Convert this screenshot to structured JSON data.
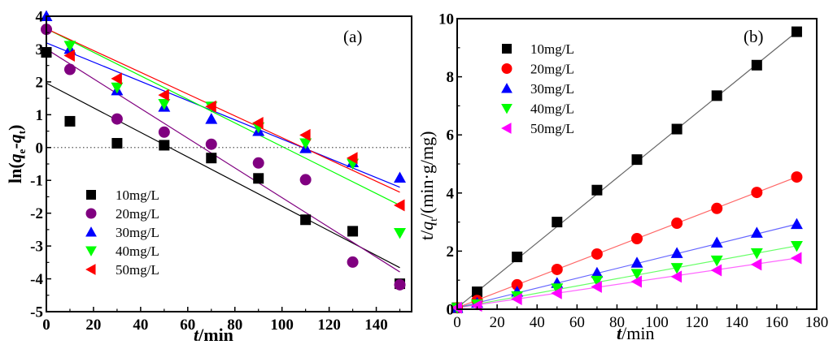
{
  "chart_data": [
    {
      "type": "scatter",
      "panel_label": "(a)",
      "title": "",
      "xlabel": "t/min",
      "xlabel_parts": {
        "italic": "t",
        "rest": "/min"
      },
      "ylabel": "ln(q_e-q_t)",
      "ylabel_parts": {
        "pre": "ln(",
        "q1": "q",
        "sub1": "e",
        "mid": "-",
        "q2": "q",
        "sub2": "t",
        "post": ")"
      },
      "xlim": [
        0,
        155
      ],
      "ylim": [
        -5,
        4
      ],
      "xticks": [
        0,
        20,
        40,
        60,
        80,
        100,
        120,
        140
      ],
      "yticks": [
        -5,
        -4,
        -3,
        -2,
        -1,
        0,
        1,
        2,
        3,
        4
      ],
      "grid": false,
      "reference_line": {
        "y": 0,
        "style": "dotted"
      },
      "legend_position": "bottom-left",
      "x": [
        0,
        10,
        30,
        50,
        70,
        90,
        110,
        130,
        150
      ],
      "series": [
        {
          "name": "10mg/L",
          "marker": "square",
          "color": "#000000",
          "values": [
            2.9,
            0.8,
            0.13,
            0.07,
            -0.32,
            -0.94,
            -2.2,
            -2.55,
            -4.15
          ],
          "fit": [
            1.96,
            -3.66
          ]
        },
        {
          "name": "20mg/L",
          "marker": "circle",
          "color": "#800080",
          "values": [
            3.6,
            2.38,
            0.87,
            0.47,
            0.1,
            -0.47,
            -0.98,
            -3.49,
            -4.18
          ],
          "fit": [
            3.0,
            -3.79
          ]
        },
        {
          "name": "30mg/L",
          "marker": "triangle-up",
          "color": "#0000ff",
          "values": [
            4.0,
            3.0,
            1.74,
            1.24,
            0.87,
            0.5,
            -0.02,
            -0.45,
            -0.92
          ],
          "fit": [
            3.19,
            -1.21
          ]
        },
        {
          "name": "40mg/L",
          "marker": "triangle-down",
          "color": "#00ff00",
          "values": [
            null,
            3.1,
            1.83,
            1.33,
            1.25,
            0.62,
            0.13,
            -0.49,
            -2.6
          ],
          "fit": [
            3.62,
            -1.76
          ]
        },
        {
          "name": "50mg/L",
          "marker": "triangle-left",
          "color": "#ff0000",
          "values": [
            null,
            2.8,
            2.1,
            1.6,
            1.25,
            0.75,
            0.38,
            -0.32,
            -1.76
          ],
          "fit": [
            3.62,
            -1.36
          ]
        }
      ]
    },
    {
      "type": "scatter",
      "panel_label": "(b)",
      "title": "",
      "xlabel": "t/min",
      "xlabel_parts": {
        "italic": "t",
        "rest": "/min"
      },
      "ylabel": "t/q_t/(min·g/mg)",
      "ylabel_parts": {
        "pre": "t/",
        "q": "q",
        "sub": "t",
        "post": "/(min·g/mg)"
      },
      "xlim": [
        0,
        180
      ],
      "ylim": [
        0,
        10
      ],
      "xticks": [
        0,
        20,
        40,
        60,
        80,
        100,
        120,
        140,
        160,
        180
      ],
      "yticks": [
        0,
        2,
        4,
        6,
        8,
        10
      ],
      "grid": false,
      "legend_position": "top-left",
      "x": [
        0,
        10,
        30,
        50,
        70,
        90,
        110,
        130,
        150,
        170
      ],
      "series": [
        {
          "name": "10mg/L",
          "marker": "square",
          "color": "#000000",
          "values": [
            0.05,
            0.6,
            1.8,
            3.0,
            4.1,
            5.15,
            6.2,
            7.35,
            8.4,
            9.55
          ],
          "fit": [
            0.05,
            9.55
          ]
        },
        {
          "name": "20mg/L",
          "marker": "circle",
          "color": "#ff0000",
          "values": [
            0.05,
            0.3,
            0.84,
            1.37,
            1.9,
            2.43,
            2.96,
            3.47,
            4.02,
            4.55
          ],
          "fit": [
            0.05,
            4.55
          ]
        },
        {
          "name": "30mg/L",
          "marker": "triangle-up",
          "color": "#0000ff",
          "values": [
            0.05,
            0.22,
            0.6,
            0.9,
            1.25,
            1.6,
            1.93,
            2.29,
            2.63,
            2.93
          ],
          "fit": [
            0.05,
            2.93
          ]
        },
        {
          "name": "40mg/L",
          "marker": "triangle-down",
          "color": "#00ff00",
          "values": [
            0.05,
            0.17,
            0.45,
            0.72,
            0.98,
            1.22,
            1.42,
            1.68,
            1.93,
            2.18
          ],
          "fit": [
            0.05,
            2.18
          ]
        },
        {
          "name": "50mg/L",
          "marker": "triangle-left",
          "color": "#ff00ff",
          "values": [
            0.05,
            0.12,
            0.35,
            0.55,
            0.77,
            0.95,
            1.12,
            1.34,
            1.54,
            1.76
          ],
          "fit": [
            0.05,
            1.76
          ]
        }
      ]
    }
  ]
}
